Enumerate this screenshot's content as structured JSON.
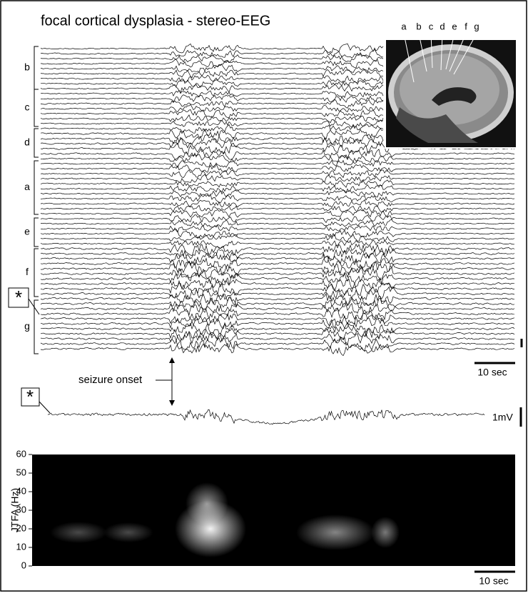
{
  "title": "focal cortical dysplasia - stereo-EEG",
  "brain_labels": [
    "a",
    "b",
    "c",
    "d",
    "e",
    "f",
    "g"
  ],
  "channel_groups": [
    "b",
    "c",
    "d",
    "a",
    "e",
    "f",
    "g"
  ],
  "markers": [
    "*",
    "*"
  ],
  "eeg_time_scale": "10 sec",
  "seizure_onset": "seizure onset",
  "trace_scale": "1mV",
  "spectrogram": {
    "ylabel": "JTFA (Hz)",
    "ylim": [
      0,
      60
    ],
    "yticks": [
      0,
      10,
      20,
      30,
      40,
      50,
      60
    ],
    "time_scale": "10 sec"
  }
}
